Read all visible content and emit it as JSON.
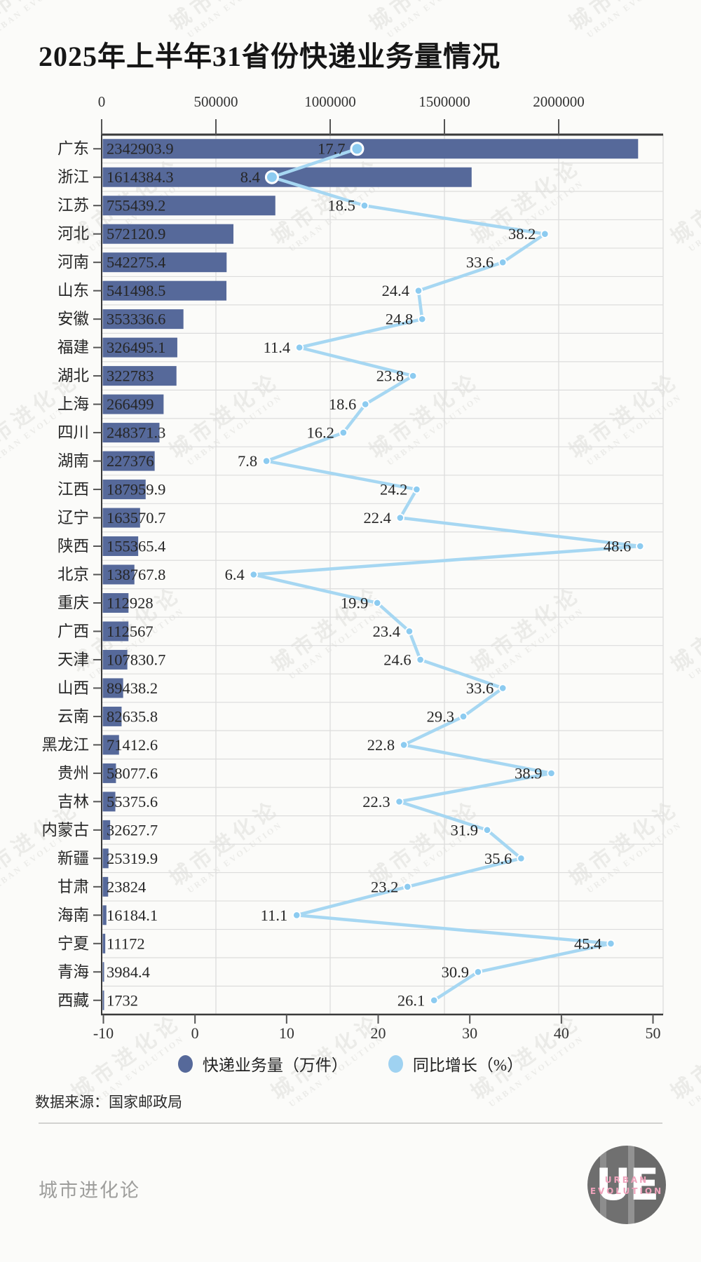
{
  "title": "2025年上半年31省份快递业务量情况",
  "watermark": {
    "line1": "城市进化论",
    "line2": "URBAN EVOLUTION"
  },
  "chart_data": {
    "type": "bar",
    "orientation": "horizontal",
    "title": "2025年上半年31省份快递业务量情况",
    "categories": [
      "广东",
      "浙江",
      "江苏",
      "河北",
      "河南",
      "山东",
      "安徽",
      "福建",
      "湖北",
      "上海",
      "四川",
      "湖南",
      "江西",
      "辽宁",
      "陕西",
      "北京",
      "重庆",
      "广西",
      "天津",
      "山西",
      "云南",
      "黑龙江",
      "贵州",
      "吉林",
      "内蒙古",
      "新疆",
      "甘肃",
      "海南",
      "宁夏",
      "青海",
      "西藏"
    ],
    "series": [
      {
        "name": "快递业务量（万件）",
        "type": "bar",
        "axis": "top",
        "values": [
          2342903.9,
          1614384.3,
          755439.2,
          572120.9,
          542275.4,
          541498.5,
          353336.6,
          326495.1,
          322783,
          266499,
          248371.3,
          227376,
          187959.9,
          163570.7,
          155365.4,
          138767.8,
          112928,
          112567,
          107830.7,
          89438.2,
          82635.8,
          71412.6,
          58077.6,
          55375.6,
          32627.7,
          25319.9,
          23824,
          16184.1,
          11172,
          3984.4,
          1732
        ]
      },
      {
        "name": "同比增长（%）",
        "type": "line",
        "axis": "bottom",
        "values": [
          17.7,
          8.4,
          18.5,
          38.2,
          33.6,
          24.4,
          24.8,
          11.4,
          23.8,
          18.6,
          16.2,
          7.8,
          24.2,
          22.4,
          48.6,
          6.4,
          19.9,
          23.4,
          24.6,
          33.6,
          29.3,
          22.8,
          38.9,
          22.3,
          31.9,
          35.6,
          23.2,
          11.1,
          45.4,
          30.9,
          26.1
        ]
      }
    ],
    "top_axis": {
      "ticks": [
        0,
        500000,
        1000000,
        1500000,
        2000000
      ],
      "min": 0,
      "max": 2455000
    },
    "bottom_axis": {
      "ticks": [
        -10,
        0,
        10,
        20,
        30,
        40,
        50
      ],
      "min": -10,
      "max": 51.3
    },
    "grid": true,
    "legend_position": "bottom"
  },
  "legend": {
    "items": [
      {
        "label": "快递业务量（万件）",
        "color": "#56699a"
      },
      {
        "label": "同比增长（%）",
        "color": "#9fd2f1"
      }
    ]
  },
  "source": "数据来源：国家邮政局",
  "footer": {
    "brand": "城市进化论",
    "logo_monogram": "UE",
    "logo_caption_line1": "URBAN",
    "logo_caption_line2": "EVOLUTION"
  },
  "colors": {
    "bar": "#56699a",
    "line": "#a6d7f2",
    "marker": "#8ccbf0",
    "grid": "#dcdcdc",
    "spine": "#3a3a3a",
    "label": "#262626",
    "axis_text": "#333333"
  }
}
